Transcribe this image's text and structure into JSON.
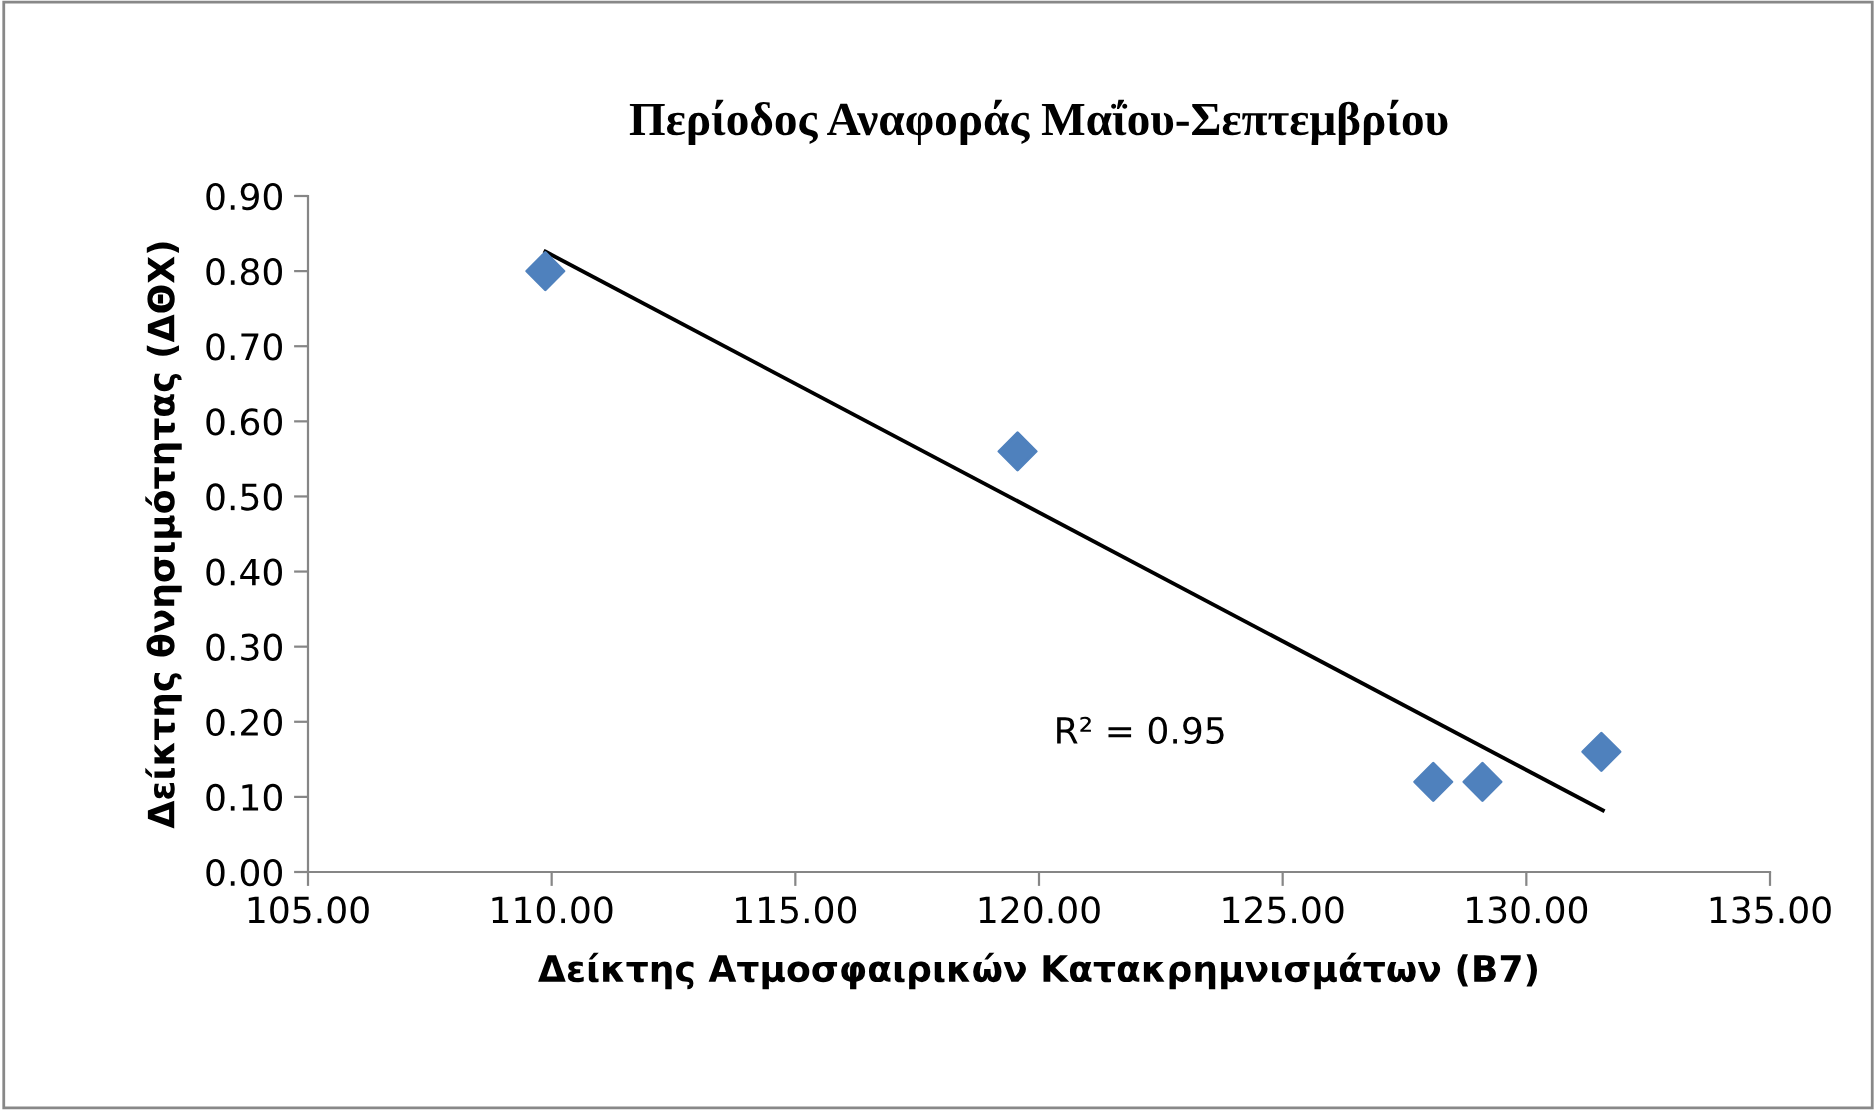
{
  "chart_data": {
    "type": "scatter",
    "title": "Περίοδος Αναφοράς Μαΐου-Σεπτεμβρίου",
    "xlabel": "Δείκτης Ατμοσφαιρικών Κατακρημνισμάτων (Β7)",
    "ylabel": "Δείκτης θνησιμότητας (ΔΘΧ)",
    "series": [
      {
        "color": "#4f81bd",
        "x": [
          109.87,
          119.56,
          128.09,
          129.1,
          131.54
        ],
        "values": [
          0.8,
          0.56,
          0.12,
          0.12,
          0.16
        ]
      },
      {
        "type": "line",
        "marker": "none",
        "color": "#000000",
        "x": [
          109.87,
          131.57
        ],
        "values": [
          0.826,
          0.082
        ]
      }
    ],
    "marker": "diamond",
    "grid": false,
    "legend": false,
    "xlim": [
      105,
      135
    ],
    "xticks": [
      {
        "value": 105,
        "label": "105.00"
      },
      {
        "value": 110,
        "label": "110.00"
      },
      {
        "value": 115,
        "label": "115.00"
      },
      {
        "value": 120,
        "label": "120.00"
      },
      {
        "value": 125,
        "label": "125.00"
      },
      {
        "value": 130,
        "label": "130.00"
      },
      {
        "value": 135,
        "label": "135.00"
      }
    ],
    "ylim": [
      0,
      0.9
    ],
    "yticks": [
      {
        "value": 0,
        "label": "0.00"
      },
      {
        "value": 0.1,
        "label": "0.10"
      },
      {
        "value": 0.2,
        "label": "0.20"
      },
      {
        "value": 0.3,
        "label": "0.30"
      },
      {
        "value": 0.4,
        "label": "0.40"
      },
      {
        "value": 0.5,
        "label": "0.50"
      },
      {
        "value": 0.6,
        "label": "0.60"
      },
      {
        "value": 0.7,
        "label": "0.70"
      },
      {
        "value": 0.8,
        "label": "0.80"
      },
      {
        "value": 0.9,
        "label": "0.90"
      }
    ],
    "annotations": [
      "R² = 0.95"
    ]
  }
}
